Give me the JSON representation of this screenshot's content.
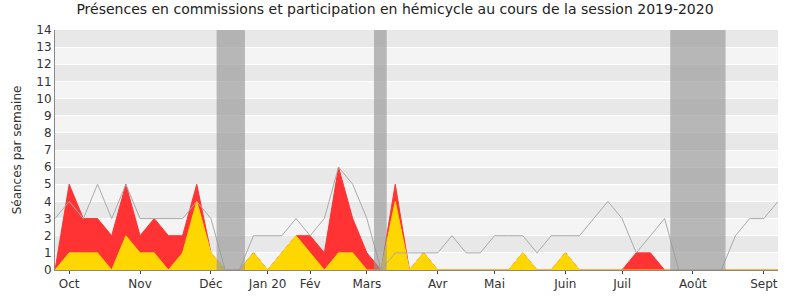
{
  "chart_data": {
    "type": "area",
    "title": "Présences en commissions et participation en hémicycle au cours de la session 2019-2020",
    "y_label": "Séances par semaine",
    "categories": [
      null,
      "Oct",
      null,
      null,
      null,
      null,
      "Nov",
      null,
      null,
      null,
      null,
      "Déc",
      null,
      null,
      null,
      "Jan 20",
      null,
      null,
      "Fév",
      null,
      null,
      null,
      "Mars",
      null,
      null,
      null,
      null,
      "Avr",
      null,
      null,
      null,
      "Mai",
      null,
      null,
      null,
      null,
      "Juin",
      null,
      null,
      null,
      "Juil",
      null,
      null,
      null,
      null,
      "Août",
      null,
      null,
      null,
      null,
      "Sept",
      null
    ],
    "series": [
      {
        "type": "area",
        "color": "#ff3333",
        "values": [
          0,
          5,
          3,
          3,
          2,
          5,
          2,
          3,
          2,
          2,
          5,
          1,
          0,
          0,
          1,
          0,
          1,
          2,
          2,
          1,
          6,
          3,
          1,
          0,
          5,
          0,
          1,
          0,
          0,
          0,
          0,
          0,
          0,
          1,
          0,
          0,
          1,
          0,
          0,
          0,
          0,
          1,
          1,
          0,
          0,
          0,
          0,
          0,
          0,
          0,
          0,
          0
        ]
      },
      {
        "type": "area",
        "color": "#ffd700",
        "values": [
          0,
          1,
          1,
          1,
          0,
          2,
          1,
          1,
          0,
          1,
          4,
          1,
          0,
          0,
          1,
          0,
          1,
          2,
          1,
          0,
          1,
          1,
          0,
          0,
          4,
          0,
          1,
          0,
          0,
          0,
          0,
          0,
          0,
          1,
          0,
          0,
          1,
          0,
          0,
          0,
          0,
          0,
          0,
          0,
          0,
          0,
          0,
          0,
          0,
          0,
          0,
          0
        ]
      },
      {
        "type": "bar",
        "color": "#7070ff",
        "values": [
          0,
          0,
          0,
          0,
          0,
          0,
          0,
          0,
          0,
          0,
          0,
          0,
          0,
          0,
          1,
          0,
          0,
          1,
          1,
          0,
          0,
          0,
          0,
          0,
          0,
          0,
          1,
          0,
          0,
          0,
          0,
          0,
          0,
          0,
          0,
          0,
          1,
          0,
          0,
          0,
          0,
          0,
          0,
          0,
          0,
          0,
          0,
          0,
          0,
          0,
          0,
          0
        ]
      },
      {
        "type": "line",
        "color": "#aaaaaa",
        "values": [
          3,
          4,
          3,
          5,
          3,
          5,
          3,
          3,
          3,
          3,
          4,
          3,
          0,
          0,
          2,
          2,
          2,
          3,
          2,
          3,
          6,
          5,
          3,
          0,
          1,
          1,
          1,
          1,
          2,
          1,
          1,
          2,
          2,
          2,
          1,
          2,
          2,
          2,
          3,
          4,
          3,
          1,
          2,
          3,
          0,
          0,
          0,
          0,
          2,
          3,
          3,
          4
        ]
      }
    ],
    "shaded_ranges": [
      [
        11.4,
        13.4
      ],
      [
        22.5,
        23.4
      ],
      [
        43.4,
        47.3
      ]
    ],
    "ylim": [
      0,
      14
    ],
    "yticks": [
      0,
      1,
      2,
      3,
      4,
      5,
      6,
      7,
      8,
      9,
      10,
      11,
      12,
      13,
      14
    ],
    "grid": true
  }
}
